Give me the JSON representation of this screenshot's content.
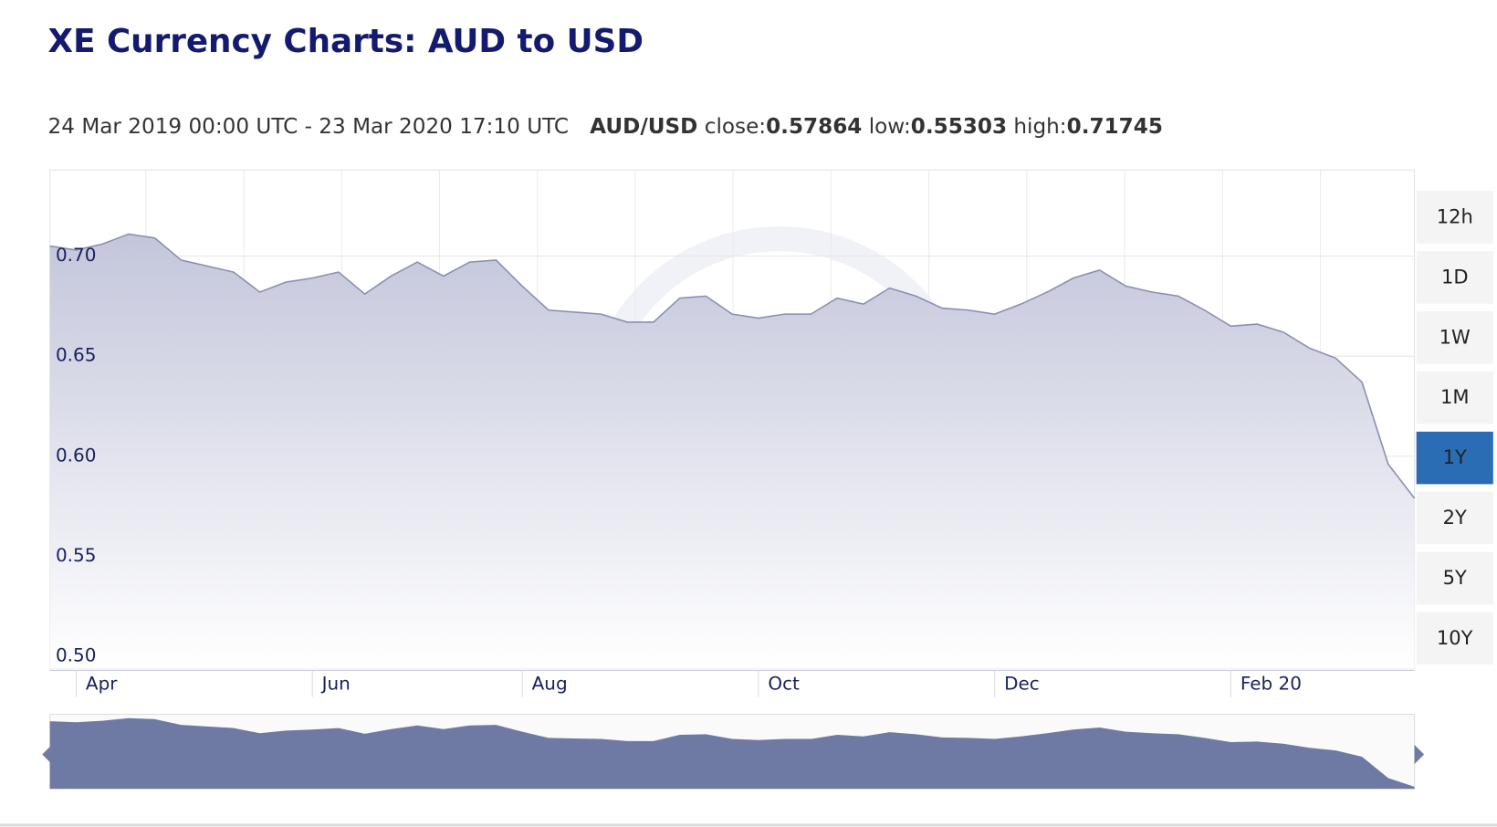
{
  "header": {
    "title": "XE Currency Charts: AUD to USD",
    "range": "24 Mar 2019 00:00 UTC - 23 Mar 2020 17:10 UTC",
    "pair": "AUD/USD",
    "close_label": "close:",
    "close": 0.57864,
    "low_label": "low:",
    "low": 0.55303,
    "high_label": "high:",
    "high": 0.71745
  },
  "buttons": [
    {
      "label": "12h",
      "active": false
    },
    {
      "label": "1D",
      "active": false
    },
    {
      "label": "1W",
      "active": false
    },
    {
      "label": "1M",
      "active": false
    },
    {
      "label": "1Y",
      "active": true
    },
    {
      "label": "2Y",
      "active": false
    },
    {
      "label": "5Y",
      "active": false
    },
    {
      "label": "10Y",
      "active": false
    }
  ],
  "chart_data": {
    "type": "area",
    "color": "#8a8fb0",
    "categories": [
      null,
      "Apr",
      null,
      null,
      null,
      null,
      null,
      null,
      null,
      null,
      "Jun",
      null,
      null,
      null,
      null,
      null,
      null,
      null,
      "Aug",
      null,
      null,
      null,
      null,
      null,
      null,
      null,
      null,
      "Oct",
      null,
      null,
      null,
      null,
      null,
      null,
      null,
      null,
      "Dec",
      null,
      null,
      null,
      null,
      null,
      null,
      null,
      null,
      "Feb 20",
      null,
      null,
      null,
      null,
      null,
      null,
      null
    ],
    "values": [
      0.705,
      0.703,
      0.706,
      0.711,
      0.709,
      0.698,
      0.695,
      0.692,
      0.682,
      0.687,
      0.689,
      0.692,
      0.681,
      0.69,
      0.697,
      0.69,
      0.697,
      0.698,
      0.685,
      0.673,
      0.672,
      0.671,
      0.667,
      0.667,
      0.679,
      0.68,
      0.671,
      0.669,
      0.671,
      0.671,
      0.679,
      0.676,
      0.684,
      0.68,
      0.674,
      0.673,
      0.671,
      0.676,
      0.682,
      0.689,
      0.693,
      0.685,
      0.682,
      0.68,
      0.673,
      0.665,
      0.666,
      0.662,
      0.654,
      0.649,
      0.637,
      0.596,
      0.579
    ],
    "ylim": [
      0.494,
      0.743
    ],
    "yticks": [
      {
        "value": 0.5,
        "label": "0.50"
      },
      0.55,
      {
        "value": 0.6,
        "label": "0.60"
      },
      0.65,
      {
        "value": 0.7,
        "label": "0.70"
      }
    ],
    "grid": true
  }
}
